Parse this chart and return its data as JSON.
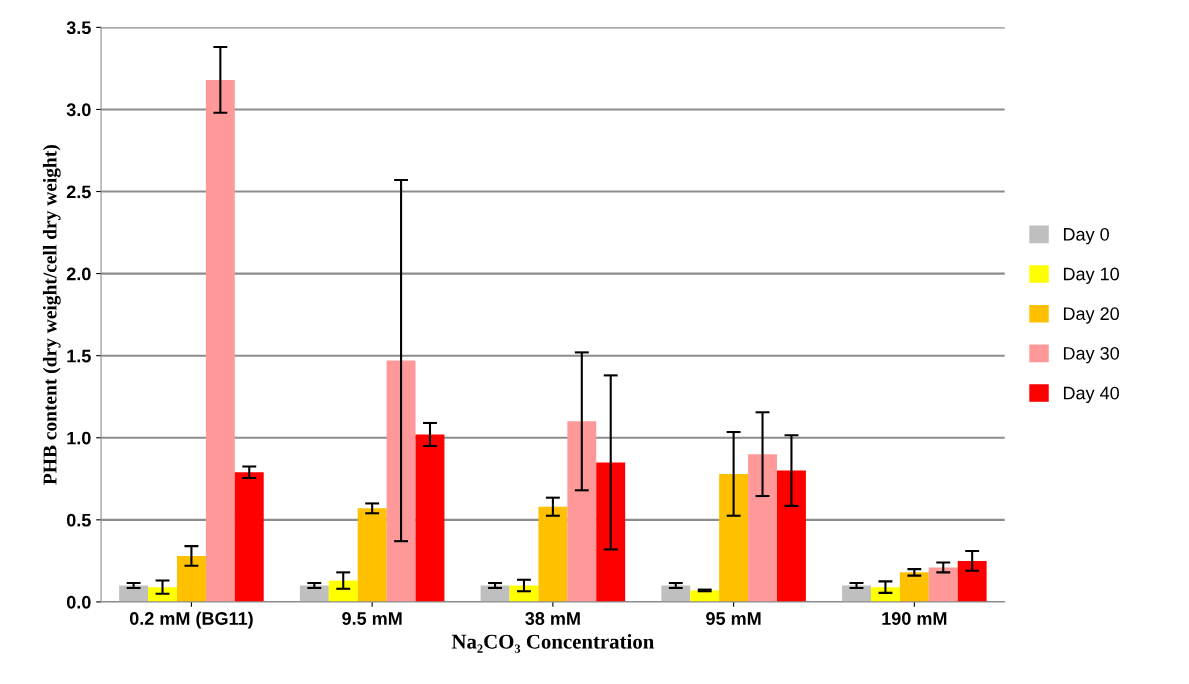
{
  "chart_data": {
    "type": "bar",
    "xlabel": "Na₂CO₃ Concentration",
    "ylabel": "PHB content (dry weight/cell dry weight)",
    "categories": [
      "0.2 mM (BG11)",
      "9.5 mM",
      "38 mM",
      "95 mM",
      "190 mM"
    ],
    "series": [
      {
        "name": "Day 0",
        "color": "#bfbfbf",
        "values": [
          0.1,
          0.1,
          0.1,
          0.1,
          0.1
        ],
        "errors": [
          0.015,
          0.015,
          0.015,
          0.015,
          0.015
        ]
      },
      {
        "name": "Day 10",
        "color": "#ffff00",
        "values": [
          0.09,
          0.13,
          0.1,
          0.07,
          0.09
        ],
        "errors": [
          0.04,
          0.05,
          0.035,
          0.005,
          0.035
        ]
      },
      {
        "name": "Day 20",
        "color": "#ffc000",
        "values": [
          0.28,
          0.57,
          0.58,
          0.78,
          0.18
        ],
        "errors": [
          0.06,
          0.03,
          0.055,
          0.255,
          0.02
        ]
      },
      {
        "name": "Day 30",
        "color": "#ff9999",
        "values": [
          3.18,
          1.47,
          1.1,
          0.9,
          0.21
        ],
        "errors": [
          0.2,
          1.1,
          0.42,
          0.255,
          0.03
        ]
      },
      {
        "name": "Day 40",
        "color": "#ff0000",
        "values": [
          0.79,
          1.02,
          0.85,
          0.8,
          0.25
        ],
        "errors": [
          0.035,
          0.07,
          0.53,
          0.215,
          0.06
        ]
      }
    ],
    "ylim": [
      0,
      3.5
    ],
    "yticks": [
      {
        "value": 0,
        "label": "0.0"
      },
      {
        "value": 0.5,
        "label": "0.5"
      },
      {
        "value": 1,
        "label": "1.0"
      },
      {
        "value": 1.5,
        "label": "1.5"
      },
      {
        "value": 2,
        "label": "2.0"
      },
      {
        "value": 2.5,
        "label": "2.5"
      },
      {
        "value": 3,
        "label": "3.0"
      },
      {
        "value": 3.5,
        "label": "3.5"
      }
    ],
    "grid": "y",
    "legend": "right"
  }
}
